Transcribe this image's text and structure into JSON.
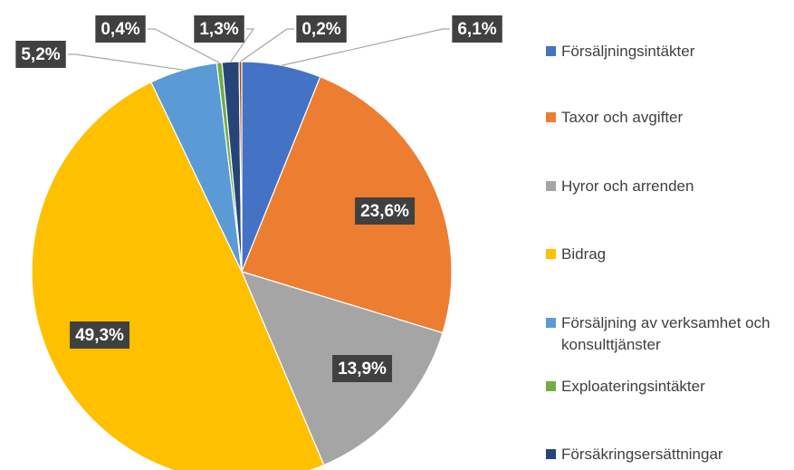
{
  "chart_data": {
    "type": "pie",
    "categories": [
      "Försäljningsintäkter",
      "Taxor och avgifter",
      "Hyror och arrenden",
      "Bidrag",
      "Försäljning av verksamhet och konsulttjänster",
      "Exploateringsintäkter",
      "Försäkringsersättningar",
      null
    ],
    "values": [
      6.1,
      23.6,
      13.9,
      49.3,
      5.2,
      0.4,
      1.3,
      0.2
    ],
    "value_labels": [
      "6,1%",
      "23,6%",
      "13,9%",
      "49,3%",
      "5,2%",
      "0,4%",
      "1,3%",
      "0,2%"
    ],
    "colors": [
      "#4472c4",
      "#ed7d31",
      "#a5a5a5",
      "#ffc000",
      "#5b9bd5",
      "#70ad47",
      "#264478",
      "#9e480e"
    ],
    "legend": "right"
  }
}
